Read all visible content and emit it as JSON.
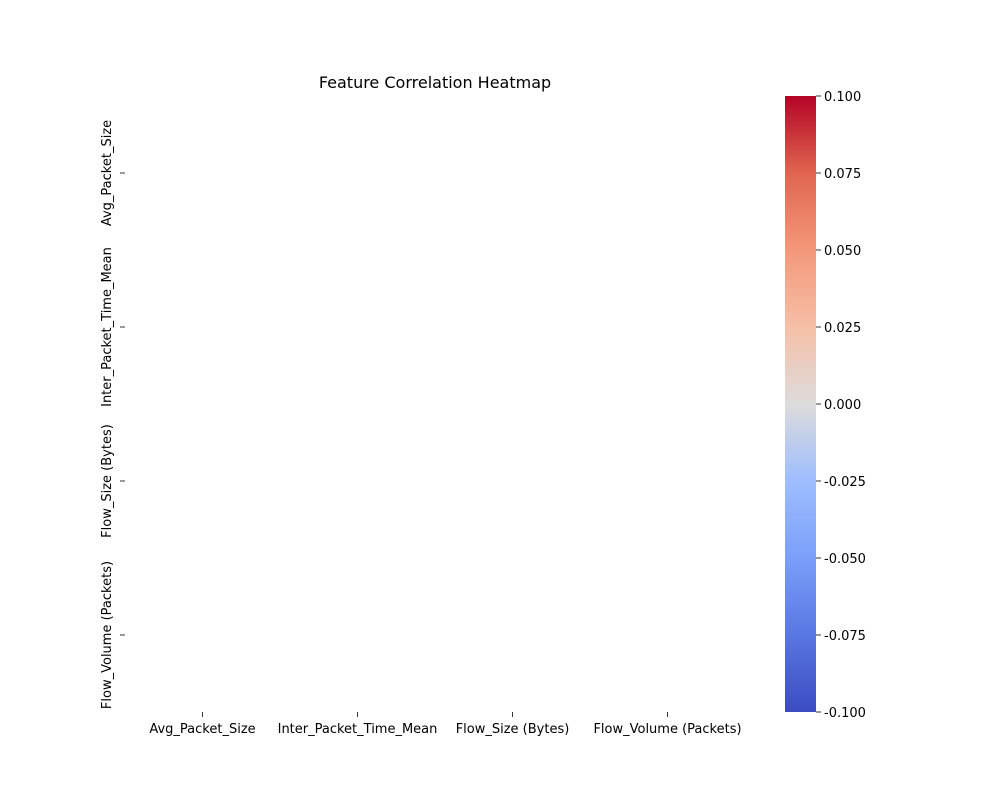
{
  "chart_data": {
    "type": "heatmap",
    "title": "Feature Correlation Heatmap",
    "x_categories": [
      "Avg_Packet_Size",
      "Inter_Packet_Time_Mean",
      "Flow_Size (Bytes)",
      "Flow_Volume (Packets)"
    ],
    "y_categories": [
      "Avg_Packet_Size",
      "Inter_Packet_Time_Mean",
      "Flow_Size (Bytes)",
      "Flow_Volume (Packets)"
    ],
    "values": [
      [
        null,
        null,
        null,
        null
      ],
      [
        null,
        null,
        null,
        null
      ],
      [
        null,
        null,
        null,
        null
      ],
      [
        null,
        null,
        null,
        null
      ]
    ],
    "colorbar": {
      "colormap": "coolwarm",
      "range": [
        -0.1,
        0.1
      ],
      "ticks": [
        "-0.100",
        "-0.075",
        "-0.050",
        "-0.025",
        "0.000",
        "0.025",
        "0.050",
        "0.075",
        "0.100"
      ],
      "colors": [
        "#3b4cc0",
        "#b40426"
      ]
    },
    "grid": false
  }
}
